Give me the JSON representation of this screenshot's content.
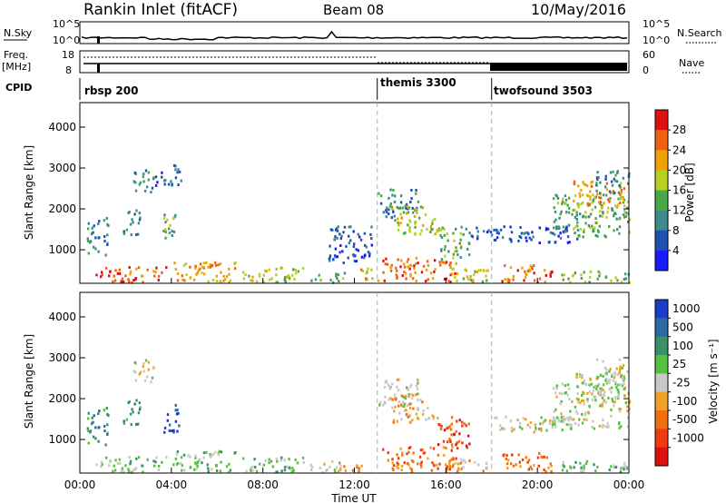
{
  "header": {
    "station": "Rankin Inlet (fitACF)",
    "beam": "Beam 08",
    "date": "10/May/2016"
  },
  "strip": {
    "nsky_label": "N.Sky",
    "nsearch_label": "N.Search",
    "nsky_ticks": [
      "10^5",
      "10^0"
    ],
    "freq_label_1": "Freq.",
    "freq_label_2": "[MHz]",
    "freq_ticks": [
      "18",
      "8"
    ],
    "nave_ticks": [
      "60",
      "0"
    ],
    "nave_label": "Nave",
    "cpid_label": "CPID",
    "cpid_segments": [
      {
        "start_hour": 0,
        "label": "rbsp 200"
      },
      {
        "start_hour": 13.0,
        "label": "themis 3300"
      },
      {
        "start_hour": 18.0,
        "label": "twofsound 3503"
      }
    ]
  },
  "chart_data": [
    {
      "type": "heatmap",
      "name": "power",
      "ylabel": "Slant Range [km]",
      "yticks": [
        "1000",
        "2000",
        "3000",
        "4000"
      ],
      "yrange": [
        180,
        4600
      ],
      "xrange_hours": [
        0,
        24
      ],
      "colorbar": {
        "label": "Power [dB]",
        "ticks": [
          "4",
          "8",
          "12",
          "16",
          "20",
          "24",
          "28"
        ],
        "colors": [
          "#1a1aff",
          "#2050b0",
          "#3c8c8c",
          "#48a848",
          "#b8d020",
          "#f0a000",
          "#f06010",
          "#e01010"
        ]
      },
      "regions": [
        {
          "t0": 0.3,
          "t1": 1.2,
          "r0": 900,
          "r1": 1800,
          "level": 2
        },
        {
          "t0": 0.6,
          "t1": 3.8,
          "r0": 180,
          "r1": 600,
          "level": 6
        },
        {
          "t0": 1.8,
          "t1": 2.6,
          "r0": 1400,
          "r1": 2000,
          "level": 2
        },
        {
          "t0": 2.3,
          "t1": 3.2,
          "r0": 2400,
          "r1": 3000,
          "level": 2
        },
        {
          "t0": 3.2,
          "t1": 4.4,
          "r0": 2600,
          "r1": 3100,
          "level": 1
        },
        {
          "t0": 3.6,
          "t1": 4.3,
          "r0": 1200,
          "r1": 1900,
          "level": 3
        },
        {
          "t0": 4.0,
          "t1": 6.8,
          "r0": 180,
          "r1": 750,
          "level": 5
        },
        {
          "t0": 7.0,
          "t1": 9.8,
          "r0": 180,
          "r1": 600,
          "level": 4
        },
        {
          "t0": 10.0,
          "t1": 11.6,
          "r0": 180,
          "r1": 500,
          "level": 3
        },
        {
          "t0": 10.8,
          "t1": 12.8,
          "r0": 700,
          "r1": 1600,
          "level": 1
        },
        {
          "t0": 12.2,
          "t1": 13.0,
          "r0": 180,
          "r1": 600,
          "level": 5
        },
        {
          "t0": 13.0,
          "t1": 14.8,
          "r0": 1800,
          "r1": 2500,
          "level": 2
        },
        {
          "t0": 13.6,
          "t1": 15.6,
          "r0": 1400,
          "r1": 2100,
          "level": 4
        },
        {
          "t0": 13.2,
          "t1": 16.5,
          "r0": 180,
          "r1": 850,
          "level": 6
        },
        {
          "t0": 15.6,
          "t1": 17.0,
          "r0": 800,
          "r1": 1600,
          "level": 3
        },
        {
          "t0": 16.2,
          "t1": 17.9,
          "r0": 180,
          "r1": 600,
          "level": 4
        },
        {
          "t0": 17.0,
          "t1": 18.4,
          "r0": 1300,
          "r1": 1600,
          "level": 1
        },
        {
          "t0": 18.4,
          "t1": 20.6,
          "r0": 180,
          "r1": 700,
          "level": 6
        },
        {
          "t0": 18.0,
          "t1": 21.8,
          "r0": 1200,
          "r1": 1600,
          "level": 1
        },
        {
          "t0": 20.6,
          "t1": 24.0,
          "r0": 1300,
          "r1": 2400,
          "level": 3
        },
        {
          "t0": 21.5,
          "t1": 23.8,
          "r0": 2000,
          "r1": 2700,
          "level": 5
        },
        {
          "t0": 22.5,
          "t1": 24.0,
          "r0": 2400,
          "r1": 3000,
          "level": 2
        },
        {
          "t0": 21.0,
          "t1": 24.0,
          "r0": 180,
          "r1": 500,
          "level": 3
        }
      ]
    },
    {
      "type": "heatmap",
      "name": "velocity",
      "ylabel": "Slant Range [km]",
      "yticks": [
        "1000",
        "2000",
        "3000",
        "4000"
      ],
      "yrange": [
        180,
        4600
      ],
      "xrange_hours": [
        0,
        24
      ],
      "xticks": [
        "00:00",
        "04:00",
        "08:00",
        "12:00",
        "16:00",
        "20:00",
        "00:00"
      ],
      "xlabel": "Time UT",
      "colorbar": {
        "label": "Velocity [m s⁻¹]",
        "ticks": [
          "1000",
          "500",
          "100",
          "25",
          "-25",
          "-100",
          "-500",
          "-1000"
        ],
        "colors": [
          "#1a3cc8",
          "#2a6aa0",
          "#3a9068",
          "#58c040",
          "#c8c8c8",
          "#f0a028",
          "#f07010",
          "#f03a10",
          "#e01010"
        ]
      },
      "regions": [
        {
          "t0": 0.3,
          "t1": 1.2,
          "r0": 900,
          "r1": 1800,
          "level": 2
        },
        {
          "t0": 0.6,
          "t1": 3.8,
          "r0": 180,
          "r1": 600,
          "level": 3
        },
        {
          "t0": 1.8,
          "t1": 2.6,
          "r0": 1400,
          "r1": 2000,
          "level": 2
        },
        {
          "t0": 2.3,
          "t1": 3.2,
          "r0": 2400,
          "r1": 3000,
          "level": 4
        },
        {
          "t0": 3.6,
          "t1": 4.3,
          "r0": 1200,
          "r1": 1900,
          "level": 0
        },
        {
          "t0": 4.0,
          "t1": 6.8,
          "r0": 180,
          "r1": 750,
          "level": 3
        },
        {
          "t0": 7.0,
          "t1": 9.8,
          "r0": 180,
          "r1": 600,
          "level": 3
        },
        {
          "t0": 10.0,
          "t1": 11.6,
          "r0": 180,
          "r1": 500,
          "level": 4
        },
        {
          "t0": 11.2,
          "t1": 12.4,
          "r0": 180,
          "r1": 450,
          "level": 6
        },
        {
          "t0": 13.0,
          "t1": 14.8,
          "r0": 1800,
          "r1": 2500,
          "level": 4
        },
        {
          "t0": 13.6,
          "t1": 15.6,
          "r0": 1400,
          "r1": 2100,
          "level": 5
        },
        {
          "t0": 13.2,
          "t1": 16.5,
          "r0": 180,
          "r1": 850,
          "level": 6
        },
        {
          "t0": 15.6,
          "t1": 17.0,
          "r0": 800,
          "r1": 1600,
          "level": 7
        },
        {
          "t0": 16.2,
          "t1": 17.9,
          "r0": 180,
          "r1": 600,
          "level": 5
        },
        {
          "t0": 18.4,
          "t1": 20.6,
          "r0": 180,
          "r1": 700,
          "level": 6
        },
        {
          "t0": 18.0,
          "t1": 21.8,
          "r0": 1200,
          "r1": 1600,
          "level": 4
        },
        {
          "t0": 20.6,
          "t1": 24.0,
          "r0": 1300,
          "r1": 2400,
          "level": 4
        },
        {
          "t0": 21.5,
          "t1": 23.8,
          "r0": 2000,
          "r1": 2700,
          "level": 4
        },
        {
          "t0": 22.5,
          "t1": 24.0,
          "r0": 2400,
          "r1": 3000,
          "level": 4
        },
        {
          "t0": 21.0,
          "t1": 24.0,
          "r0": 180,
          "r1": 500,
          "level": 3
        }
      ]
    }
  ]
}
